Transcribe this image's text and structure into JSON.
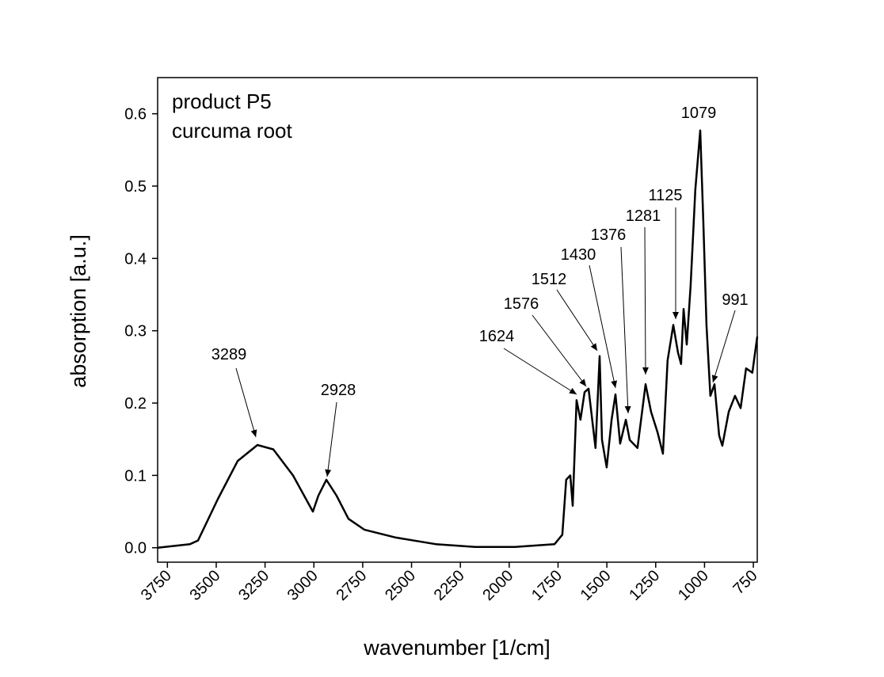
{
  "chart_data": {
    "type": "line",
    "title_lines": [
      "product P5",
      "curcuma root"
    ],
    "xlabel": "wavenumber [1/cm]",
    "ylabel": "absorption [a.u.]",
    "x": [
      3800,
      3634,
      3593,
      3492,
      3390,
      3289,
      3208,
      3107,
      3005,
      2977,
      2936,
      2884,
      2823,
      2742,
      2580,
      2377,
      2174,
      1971,
      1768,
      1728,
      1708,
      1687,
      1675,
      1655,
      1635,
      1614,
      1594,
      1558,
      1537,
      1525,
      1501,
      1476,
      1456,
      1432,
      1403,
      1383,
      1343,
      1302,
      1274,
      1241,
      1213,
      1189,
      1160,
      1136,
      1120,
      1107,
      1091,
      1071,
      1047,
      1022,
      1006,
      990,
      970,
      949,
      925,
      909,
      876,
      844,
      815,
      787,
      755,
      730
    ],
    "series": [
      {
        "name": null,
        "color": "#000000",
        "values": [
          0.0,
          0.005,
          0.01,
          0.067,
          0.12,
          0.142,
          0.136,
          0.1,
          0.05,
          0.072,
          0.094,
          0.072,
          0.04,
          0.025,
          0.014,
          0.005,
          0.001,
          0.001,
          0.005,
          0.018,
          0.094,
          0.1,
          0.058,
          0.204,
          0.177,
          0.215,
          0.22,
          0.138,
          0.265,
          0.149,
          0.111,
          0.177,
          0.212,
          0.144,
          0.177,
          0.149,
          0.138,
          0.226,
          0.188,
          0.16,
          0.13,
          0.259,
          0.308,
          0.27,
          0.254,
          0.33,
          0.281,
          0.363,
          0.495,
          0.577,
          0.451,
          0.308,
          0.21,
          0.226,
          0.155,
          0.141,
          0.188,
          0.21,
          0.193,
          0.248,
          0.242,
          0.292
        ]
      }
    ],
    "xlim": [
      3800,
      730
    ],
    "xticks": [
      3750,
      3500,
      3250,
      3000,
      2750,
      2500,
      2250,
      2000,
      1750,
      1500,
      1250,
      1000,
      750
    ],
    "ylim": [
      -0.02,
      0.65
    ],
    "yticks": [
      {
        "value": 0,
        "label": "0.0"
      },
      0.1,
      0.2,
      0.3,
      0.4,
      0.5,
      0.6
    ],
    "annotations": [
      "3289",
      "2928",
      "1624",
      "1576",
      "1512",
      "1430",
      "1376",
      "1281",
      "1125",
      "1079",
      "991"
    ]
  }
}
